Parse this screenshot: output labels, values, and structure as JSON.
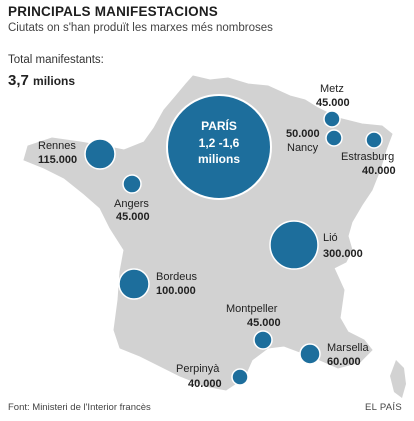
{
  "header": {
    "title": "PRINCIPALS MANIFESTACIONS",
    "subtitle": "Ciutats on s'han produït les marxes més nombroses"
  },
  "total": {
    "label": "Total manifestants:",
    "value": "3,7",
    "unit": "milions"
  },
  "colors": {
    "land": "#d2d2d2",
    "bubble": "#1d6e9c",
    "bubble_stroke": "#ffffff"
  },
  "cities": [
    {
      "id": "paris",
      "name": "PARÍS",
      "value_text": "1,2 -1,6",
      "unit_text": "milions",
      "value": 1400000
    },
    {
      "id": "metz",
      "name": "Metz",
      "value_text": "45.000",
      "value": 45000
    },
    {
      "id": "nancy",
      "name": "Nancy",
      "value_text": "50.000",
      "value": 50000
    },
    {
      "id": "estrasburg",
      "name": "Estrasburg",
      "value_text": "40.000",
      "value": 40000
    },
    {
      "id": "rennes",
      "name": "Rennes",
      "value_text": "115.000",
      "value": 115000
    },
    {
      "id": "angers",
      "name": "Angers",
      "value_text": "45.000",
      "value": 45000
    },
    {
      "id": "lio",
      "name": "Lió",
      "value_text": "300.000",
      "value": 300000
    },
    {
      "id": "bordeus",
      "name": "Bordeus",
      "value_text": "100.000",
      "value": 100000
    },
    {
      "id": "montpeller",
      "name": "Montpeller",
      "value_text": "45.000",
      "value": 45000
    },
    {
      "id": "marsella",
      "name": "Marsella",
      "value_text": "60.000",
      "value": 60000
    },
    {
      "id": "perpinya",
      "name": "Perpinyà",
      "value_text": "40.000",
      "value": 40000
    }
  ],
  "footer": {
    "source": "Font: Ministeri de l'Interior francès",
    "brand": "EL PAÍS"
  }
}
